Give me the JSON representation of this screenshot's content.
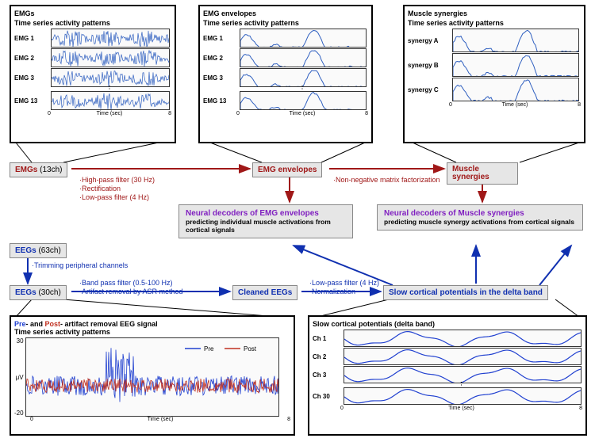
{
  "panels": {
    "emg_raw": {
      "title1": "EMGs",
      "title2": "Time series activity patterns",
      "labels": [
        "EMG 1",
        "EMG 2",
        "EMG 3",
        "EMG 13"
      ],
      "xlabel": "Time (sec)",
      "xmin": 0,
      "xmax": 8,
      "color": "#3060c0"
    },
    "emg_env": {
      "title1": "EMG envelopes",
      "title2": "Time series activity patterns",
      "labels": [
        "EMG 1",
        "EMG 2",
        "EMG 3",
        "EMG 13"
      ],
      "xlabel": "Time (sec)",
      "xmin": 0,
      "xmax": 8,
      "color": "#3060c0"
    },
    "synergy": {
      "title1": "Muscle synergies",
      "title2": "Time series activity patterns",
      "labels": [
        "synergy A",
        "synergy B",
        "synergy C"
      ],
      "xlabel": "Time (sec)",
      "xmin": 0,
      "xmax": 8,
      "color": "#3060c0"
    },
    "prepost": {
      "title1": "Pre- and Post- artifact removal EEG signal",
      "title2": "Time series activity patterns",
      "pre_label": "Pre",
      "post_label": "Post",
      "pre_color": "#2040d0",
      "post_color": "#c03020",
      "ylabel": "μV",
      "ymin": -20,
      "ymax": 30,
      "ytick_step": 10,
      "xlabel": "Time (sec)",
      "xmin": 0,
      "xmax": 8
    },
    "delta": {
      "title1": "Slow cortical potentials (delta band)",
      "labels": [
        "Ch 1",
        "Ch 2",
        "Ch 3",
        "Ch 30"
      ],
      "xlabel": "Time (sec)",
      "xmin": 0,
      "xmax": 8,
      "color": "#2040d0"
    }
  },
  "nodes": {
    "emgs": {
      "label": "EMGs",
      "suffix": "(13ch)"
    },
    "emg_env": {
      "label": "EMG envelopes"
    },
    "synergies": {
      "label": "Muscle synergies"
    },
    "eegs63": {
      "label": "EEGs",
      "suffix": "(63ch)"
    },
    "eegs30": {
      "label": "EEGs",
      "suffix": "(30ch)"
    },
    "cleaned": {
      "label": "Cleaned EEGs"
    },
    "scp": {
      "label": "Slow cortical potentials in the delta band"
    },
    "decoder_emg": {
      "title": "Neural decoders of EMG envelopes",
      "desc": "predicting individual muscle activations from cortical signals"
    },
    "decoder_syn": {
      "title": "Neural decoders of Muscle synergies",
      "desc": "predicting muscle synergy  activations from cortical signals"
    }
  },
  "proc": {
    "emg_filter": "·High-pass filter (30 Hz)\n·Rectification\n·Low-pass filter (4 Hz)",
    "nmf": "·Non-negative matrix factorization",
    "trim": "·Trimming peripheral channels",
    "bandpass": "·Band pass filter (0.5-100 Hz)\n·Artifact removal by ASR method",
    "lowpass": "·Low-pass filter (4 Hz)\n·Normalization"
  },
  "colors": {
    "red": "#a01818",
    "blue": "#1030b0",
    "node_bg": "#e6e6e6",
    "purple": "#8020c0"
  }
}
